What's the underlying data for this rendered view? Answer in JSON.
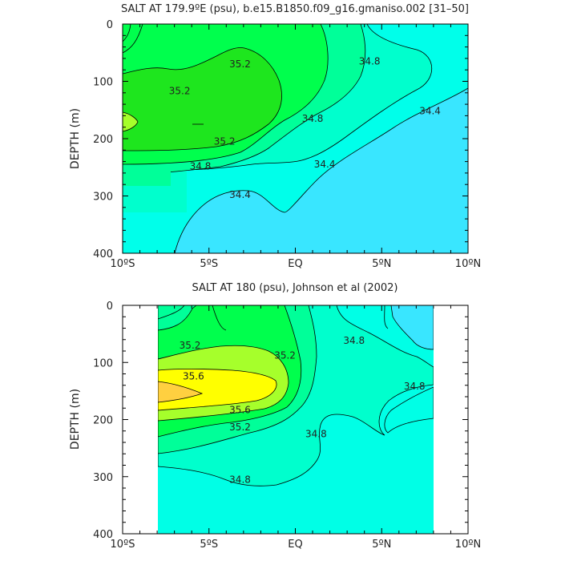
{
  "chart_data": [
    {
      "type": "contour",
      "title": "SALT AT 179.9ºE (psu), b.e15.B1850.f09_g16.gmaniso.002 [31–50]",
      "ylabel": "DEPTH (m)",
      "xlim": [
        -10,
        10
      ],
      "ylim": [
        400,
        0
      ],
      "xticks": [
        -10,
        -5,
        0,
        5,
        10
      ],
      "xtick_labels": [
        "10ºS",
        "5ºS",
        "EQ",
        "5ºN",
        "10ºN"
      ],
      "yticks": [
        0,
        100,
        200,
        300,
        400
      ],
      "ytick_labels": [
        "0",
        "100",
        "200",
        "300",
        "400"
      ],
      "data_extent_lat": [
        -10,
        10
      ],
      "contour_levels": [
        34.4,
        34.6,
        34.8,
        35.0,
        35.2,
        35.4
      ],
      "contour_labels": [
        {
          "text": "35.2",
          "lat": -3.2,
          "depth": 70
        },
        {
          "text": "35.2",
          "lat": -6.7,
          "depth": 117
        },
        {
          "text": "35.2",
          "lat": -4.1,
          "depth": 205
        },
        {
          "text": "34.8",
          "lat": 4.3,
          "depth": 65
        },
        {
          "text": "34.8",
          "lat": 1.0,
          "depth": 165
        },
        {
          "text": "34.8",
          "lat": -5.5,
          "depth": 248
        },
        {
          "text": "34.4",
          "lat": 7.8,
          "depth": 152
        },
        {
          "text": "34.4",
          "lat": 1.7,
          "depth": 245
        },
        {
          "text": "34.4",
          "lat": -3.2,
          "depth": 298
        }
      ]
    },
    {
      "type": "contour",
      "title": "SALT AT 180 (psu), Johnson et al (2002)",
      "ylabel": "DEPTH (m)",
      "xlim": [
        -10,
        10
      ],
      "ylim": [
        400,
        0
      ],
      "xticks": [
        -10,
        -5,
        0,
        5,
        10
      ],
      "xtick_labels": [
        "10ºS",
        "5ºS",
        "EQ",
        "5ºN",
        "10ºN"
      ],
      "yticks": [
        0,
        100,
        200,
        300,
        400
      ],
      "ytick_labels": [
        "0",
        "100",
        "200",
        "300",
        "400"
      ],
      "data_extent_lat": [
        -8,
        8
      ],
      "contour_levels": [
        34.6,
        34.8,
        35.0,
        35.2,
        35.4,
        35.6,
        35.8
      ],
      "contour_labels": [
        {
          "text": "35.2",
          "lat": -6.1,
          "depth": 70
        },
        {
          "text": "35.2",
          "lat": -0.6,
          "depth": 88
        },
        {
          "text": "35.6",
          "lat": -5.9,
          "depth": 124
        },
        {
          "text": "35.6",
          "lat": -3.2,
          "depth": 183
        },
        {
          "text": "35.2",
          "lat": -3.2,
          "depth": 213
        },
        {
          "text": "34.8",
          "lat": 3.4,
          "depth": 62
        },
        {
          "text": "34.8",
          "lat": 6.9,
          "depth": 142
        },
        {
          "text": "34.8",
          "lat": 1.2,
          "depth": 225
        },
        {
          "text": "34.8",
          "lat": -3.2,
          "depth": 305
        }
      ]
    }
  ]
}
